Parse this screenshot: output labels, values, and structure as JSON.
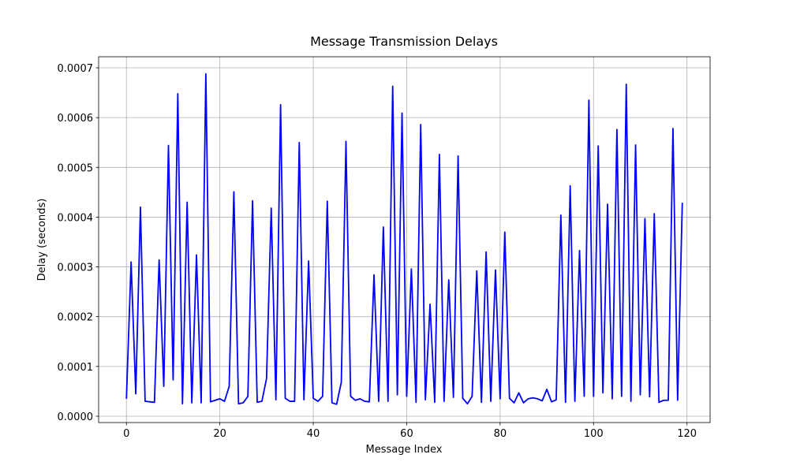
{
  "chart_data": {
    "type": "line",
    "title": "Message Transmission Delays",
    "xlabel": "Message Index",
    "ylabel": "Delay (seconds)",
    "color": "#0000ff",
    "grid": true,
    "x": [
      0,
      1,
      2,
      3,
      4,
      5,
      6,
      7,
      8,
      9,
      10,
      11,
      12,
      13,
      14,
      15,
      16,
      17,
      18,
      19,
      20,
      21,
      22,
      23,
      24,
      25,
      26,
      27,
      28,
      29,
      30,
      31,
      32,
      33,
      34,
      35,
      36,
      37,
      38,
      39,
      40,
      41,
      42,
      43,
      44,
      45,
      46,
      47,
      48,
      49,
      50,
      51,
      52,
      53,
      54,
      55,
      56,
      57,
      58,
      59,
      60,
      61,
      62,
      63,
      64,
      65,
      66,
      67,
      68,
      69,
      70,
      71,
      72,
      73,
      74,
      75,
      76,
      77,
      78,
      79,
      80,
      81,
      82,
      83,
      84,
      85,
      86,
      87,
      88,
      89,
      90,
      91,
      92,
      93,
      94,
      95,
      96,
      97,
      98,
      99,
      100,
      101,
      102,
      103,
      104,
      105,
      106,
      107,
      108,
      109,
      110,
      111,
      112,
      113,
      114,
      115,
      116,
      117,
      118,
      119
    ],
    "values": [
      3.5e-05,
      0.00031,
      4.5e-05,
      0.00042,
      3e-05,
      2.9e-05,
      2.8e-05,
      0.000314,
      6e-05,
      0.000544,
      7.3e-05,
      0.000648,
      2.5e-05,
      0.00043,
      2.7e-05,
      0.000324,
      2.7e-05,
      0.000688,
      2.9e-05,
      3.2e-05,
      3.5e-05,
      3e-05,
      6e-05,
      0.000451,
      2.5e-05,
      2.7e-05,
      4e-05,
      0.000433,
      2.8e-05,
      3e-05,
      7.6e-05,
      0.000418,
      3.3e-05,
      0.000626,
      3.6e-05,
      3e-05,
      3e-05,
      0.00055,
      3.3e-05,
      0.000312,
      3.6e-05,
      3e-05,
      4e-05,
      0.000432,
      2.7e-05,
      2.4e-05,
      6.8e-05,
      0.000552,
      4e-05,
      3.2e-05,
      3.5e-05,
      3e-05,
      2.9e-05,
      0.000284,
      3e-05,
      0.00038,
      3e-05,
      0.000663,
      4.3e-05,
      0.000609,
      4e-05,
      0.000296,
      2.8e-05,
      0.000586,
      3.3e-05,
      0.000225,
      2.8e-05,
      0.000526,
      3e-05,
      0.000274,
      3.8e-05,
      0.000523,
      3.6e-05,
      2.5e-05,
      4e-05,
      0.000292,
      2.8e-05,
      0.00033,
      3e-05,
      0.000294,
      3.5e-05,
      0.00037,
      3.6e-05,
      2.7e-05,
      4.7e-05,
      2.7e-05,
      3.5e-05,
      3.7e-05,
      3.5e-05,
      3.1e-05,
      5.4e-05,
      2.9e-05,
      3.3e-05,
      0.000404,
      2.8e-05,
      0.000463,
      3e-05,
      0.000333,
      4e-05,
      0.000635,
      4e-05,
      0.000543,
      4.7e-05,
      0.000426,
      3.5e-05,
      0.000576,
      4e-05,
      0.000667,
      3e-05,
      0.000545,
      4.3e-05,
      0.000397,
      3.9e-05,
      0.000407,
      2.8e-05,
      3.2e-05,
      3.2e-05,
      0.000578,
      3.2e-05,
      0.000429
    ],
    "xlim": [
      -5.95,
      124.95
    ],
    "xticks": [
      0,
      20,
      40,
      60,
      80,
      100,
      120
    ],
    "ylim": [
      -1.27e-05,
      0.0007222
    ],
    "yticks": [
      {
        "value": 0,
        "label": "0.0000"
      },
      {
        "value": 0.0001,
        "label": "0.0001"
      },
      {
        "value": 0.0002,
        "label": "0.0002"
      },
      {
        "value": 0.0003,
        "label": "0.0003"
      },
      {
        "value": 0.0004,
        "label": "0.0004"
      },
      {
        "value": 0.0005,
        "label": "0.0005"
      },
      {
        "value": 0.0006,
        "label": "0.0006"
      },
      {
        "value": 0.0007,
        "label": "0.0007"
      }
    ]
  }
}
